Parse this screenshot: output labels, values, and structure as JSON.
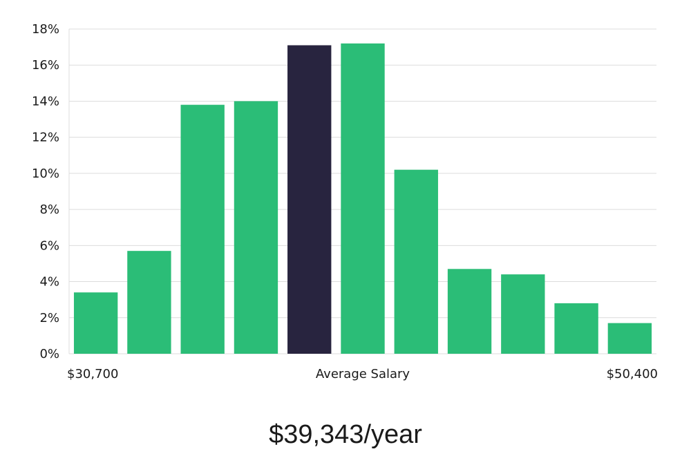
{
  "chart_data": {
    "type": "bar",
    "title": "",
    "xlabel": "",
    "ylabel": "",
    "categories": [
      "1",
      "2",
      "3",
      "4",
      "5",
      "6",
      "7",
      "8",
      "9",
      "10",
      "11"
    ],
    "values": [
      3.4,
      5.7,
      13.8,
      14.0,
      17.1,
      17.2,
      10.2,
      4.7,
      4.4,
      2.8,
      1.7
    ],
    "highlight_index": 4,
    "colors": {
      "bar": "#2bbd77",
      "highlight": "#28243f",
      "grid": "#dcdcdc"
    },
    "ylim": [
      0,
      18
    ],
    "yticks": [
      0,
      2,
      4,
      6,
      8,
      10,
      12,
      14,
      16,
      18
    ],
    "ytick_suffix": "%",
    "grid": true,
    "x_labels": {
      "left": "$30,700",
      "center": "Average Salary",
      "right": "$50,400"
    }
  },
  "average_salary_label": "$39,343/year"
}
